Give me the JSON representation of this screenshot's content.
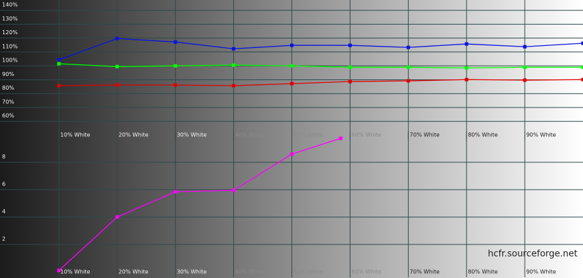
{
  "chart_data": [
    {
      "type": "line",
      "xlim": [
        0,
        100
      ],
      "xticks": [
        {
          "value": 10,
          "label": "10% White"
        },
        {
          "value": 20,
          "label": "20% White"
        },
        {
          "value": 30,
          "label": "30% White"
        },
        {
          "value": 40,
          "label": "40% White"
        },
        {
          "value": 50,
          "label": "50% White"
        },
        {
          "value": 60,
          "label": "60% White"
        },
        {
          "value": 70,
          "label": "70% White"
        },
        {
          "value": 80,
          "label": "80% White"
        },
        {
          "value": 90,
          "label": "90% White"
        }
      ],
      "ylim": [
        50,
        145
      ],
      "yticks": [
        {
          "value": 60,
          "label": "60%"
        },
        {
          "value": 70,
          "label": "70%"
        },
        {
          "value": 80,
          "label": "80%"
        },
        {
          "value": 90,
          "label": "90%"
        },
        {
          "value": 100,
          "label": "100%"
        },
        {
          "value": 110,
          "label": "110%"
        },
        {
          "value": 120,
          "label": "120%"
        },
        {
          "value": 130,
          "label": "130%"
        },
        {
          "value": 140,
          "label": "140%"
        }
      ],
      "grid": true,
      "series": [
        {
          "color": "#0a14e0",
          "x": [
            10,
            20,
            30,
            40,
            50,
            60,
            70,
            80,
            90,
            100
          ],
          "values": [
            104.4,
            119.7,
            117.2,
            112.3,
            114.8,
            114.8,
            113.3,
            115.8,
            113.8,
            116.3
          ]
        },
        {
          "color": "#00ff00",
          "x": [
            10,
            20,
            30,
            40,
            50,
            60,
            70,
            80,
            90,
            100
          ],
          "values": [
            101.5,
            99.5,
            100,
            100.5,
            100,
            99,
            99,
            98.5,
            99,
            99
          ]
        },
        {
          "color": "#e00000",
          "x": [
            10,
            20,
            30,
            40,
            50,
            60,
            70,
            80,
            90,
            100
          ],
          "values": [
            85.7,
            86.2,
            86.2,
            85.7,
            87.2,
            88.7,
            89.2,
            90.1,
            89.7,
            90.1
          ]
        }
      ]
    },
    {
      "type": "line",
      "xlim": [
        0,
        100
      ],
      "xticks": [
        {
          "value": 10,
          "label": "10% White"
        },
        {
          "value": 20,
          "label": "20% White"
        },
        {
          "value": 30,
          "label": "30% White"
        },
        {
          "value": 40,
          "label": "40% White"
        },
        {
          "value": 50,
          "label": "50% White"
        },
        {
          "value": 60,
          "label": "60% White"
        },
        {
          "value": 70,
          "label": "70% White"
        },
        {
          "value": 80,
          "label": "80% White"
        },
        {
          "value": 90,
          "label": "90% White"
        }
      ],
      "ylim": [
        0,
        10
      ],
      "yticks": [
        2,
        4,
        6,
        8
      ],
      "grid": true,
      "series": [
        {
          "color": "#ff00ff",
          "x": [
            10,
            20,
            30,
            40,
            50,
            58.4
          ],
          "values": [
            0.1,
            4,
            5.85,
            5.95,
            8.6,
            9.75
          ]
        }
      ]
    }
  ],
  "watermark": "hcfr.sourceforge.net"
}
